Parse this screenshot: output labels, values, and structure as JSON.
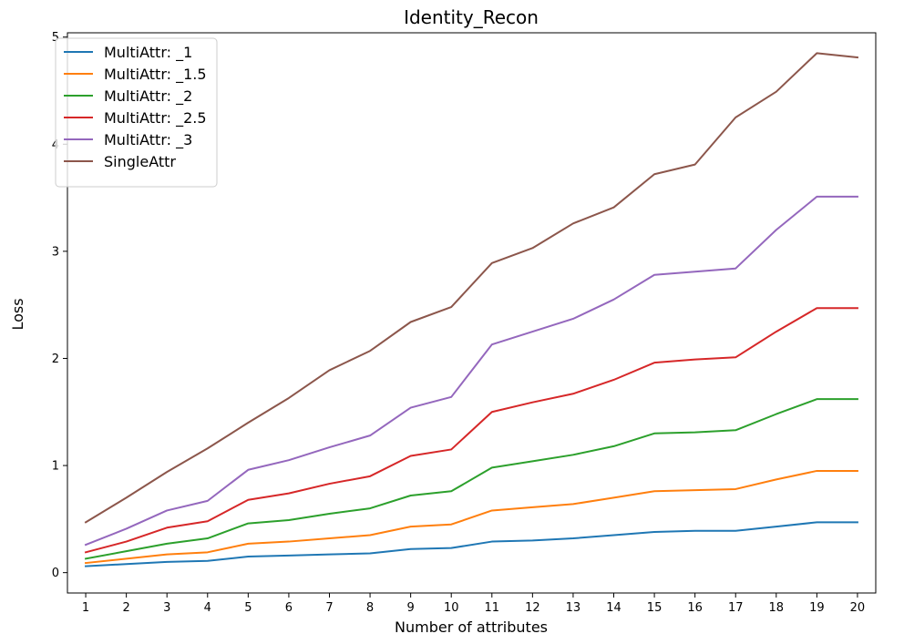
{
  "chart_data": {
    "type": "line",
    "title": "Identity_Recon",
    "xlabel": "Number of attributes",
    "ylabel": "Loss",
    "x": [
      1,
      2,
      3,
      4,
      5,
      6,
      7,
      8,
      9,
      10,
      11,
      12,
      13,
      14,
      15,
      16,
      17,
      18,
      19,
      20
    ],
    "xlim": [
      0.55,
      20.45
    ],
    "ylim": [
      -0.19,
      5.04
    ],
    "yticks": [
      0,
      1,
      2,
      3,
      4,
      5
    ],
    "grid": false,
    "legend_position": "top-left",
    "series": [
      {
        "name": "MultiAttr: _1",
        "color": "#1f77b4",
        "values": [
          0.06,
          0.08,
          0.1,
          0.11,
          0.15,
          0.16,
          0.17,
          0.18,
          0.22,
          0.23,
          0.29,
          0.3,
          0.32,
          0.35,
          0.38,
          0.39,
          0.39,
          0.43,
          0.47,
          0.47
        ]
      },
      {
        "name": "MultiAttr: _1.5",
        "color": "#ff7f0e",
        "values": [
          0.09,
          0.13,
          0.17,
          0.19,
          0.27,
          0.29,
          0.32,
          0.35,
          0.43,
          0.45,
          0.58,
          0.61,
          0.64,
          0.7,
          0.76,
          0.77,
          0.78,
          0.87,
          0.95,
          0.95
        ]
      },
      {
        "name": "MultiAttr: _2",
        "color": "#2ca02c",
        "values": [
          0.13,
          0.2,
          0.27,
          0.32,
          0.46,
          0.49,
          0.55,
          0.6,
          0.72,
          0.76,
          0.98,
          1.04,
          1.1,
          1.18,
          1.3,
          1.31,
          1.33,
          1.48,
          1.62,
          1.62
        ]
      },
      {
        "name": "MultiAttr: _2.5",
        "color": "#d62728",
        "values": [
          0.19,
          0.29,
          0.42,
          0.48,
          0.68,
          0.74,
          0.83,
          0.9,
          1.09,
          1.15,
          1.5,
          1.59,
          1.67,
          1.8,
          1.96,
          1.99,
          2.01,
          2.25,
          2.47,
          2.47
        ]
      },
      {
        "name": "MultiAttr: _3",
        "color": "#9467bd",
        "values": [
          0.26,
          0.41,
          0.58,
          0.67,
          0.96,
          1.05,
          1.17,
          1.28,
          1.54,
          1.64,
          2.13,
          2.25,
          2.37,
          2.55,
          2.78,
          2.81,
          2.84,
          3.2,
          3.51,
          3.51
        ]
      },
      {
        "name": "SingleAttr",
        "color": "#8c564b",
        "values": [
          0.47,
          0.7,
          0.94,
          1.16,
          1.4,
          1.63,
          1.89,
          2.07,
          2.34,
          2.48,
          2.89,
          3.03,
          3.26,
          3.41,
          3.72,
          3.81,
          4.25,
          4.49,
          4.85,
          4.81
        ]
      }
    ]
  }
}
